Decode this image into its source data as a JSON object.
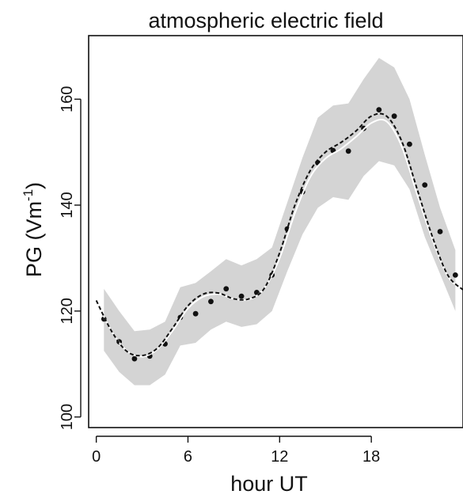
{
  "chart_data": {
    "type": "line",
    "title": "atmospheric electric field",
    "xlabel": "hour UT",
    "ylabel_main": "PG (Vm",
    "ylabel_sup": "-1",
    "ylabel_close": ")",
    "xlim": [
      -0.5,
      24
    ],
    "ylim": [
      98,
      172
    ],
    "x_ticks": [
      0,
      6,
      12,
      18
    ],
    "y_ticks": [
      100,
      120,
      140,
      160
    ],
    "grid": false,
    "band": {
      "x": [
        0.5,
        1.5,
        2.5,
        3.5,
        4.5,
        5.5,
        6.5,
        7.5,
        8.5,
        9.5,
        10.5,
        11.5,
        12.5,
        13.5,
        14.5,
        15.5,
        16.5,
        17.5,
        18.5,
        19.5,
        20.5,
        21.5,
        22.5,
        23.5
      ],
      "upper": [
        124.2,
        120.0,
        116.2,
        116.5,
        118.0,
        124.5,
        125.3,
        127.5,
        129.8,
        128.6,
        129.8,
        132.0,
        140.5,
        149.0,
        156.5,
        158.8,
        159.2,
        163.8,
        167.8,
        166.0,
        160.0,
        149.5,
        139.5,
        131.5
      ],
      "lower": [
        112.5,
        108.5,
        106.0,
        106.0,
        108.0,
        113.5,
        114.0,
        116.5,
        118.0,
        117.0,
        117.5,
        120.0,
        127.5,
        134.5,
        139.5,
        141.5,
        141.0,
        145.5,
        148.3,
        147.5,
        143.0,
        134.0,
        127.0,
        120.0
      ]
    },
    "series": [
      {
        "style": "points",
        "x": [
          0.5,
          1.5,
          2.5,
          3.5,
          4.5,
          5.5,
          6.5,
          7.5,
          8.5,
          9.5,
          10.5,
          11.5,
          12.5,
          13.5,
          14.5,
          15.5,
          16.5,
          17.5,
          18.5,
          19.5,
          20.5,
          21.5,
          22.5,
          23.5
        ],
        "values": [
          118.5,
          114.2,
          111.0,
          111.5,
          113.8,
          118.8,
          119.5,
          121.8,
          124.2,
          122.8,
          123.5,
          126.8,
          135.5,
          142.5,
          148.0,
          150.3,
          150.2,
          154.5,
          158.0,
          156.8,
          151.5,
          143.8,
          135.0,
          126.8
        ]
      },
      {
        "style": "solid-white",
        "x": [
          0,
          1,
          2,
          3,
          4,
          5,
          6,
          7,
          8,
          9,
          10,
          11,
          12,
          13,
          14,
          15,
          16,
          17,
          18,
          19,
          20,
          21,
          22,
          23,
          24
        ],
        "values": [
          122.0,
          116.2,
          112.5,
          111.4,
          112.8,
          116.3,
          120.5,
          122.7,
          123.2,
          122.3,
          122.2,
          124.3,
          130.0,
          138.5,
          145.3,
          148.8,
          150.6,
          152.9,
          155.5,
          155.8,
          151.0,
          142.0,
          133.5,
          126.6,
          124.0
        ]
      },
      {
        "style": "dashed-black",
        "x": [
          0,
          1,
          2,
          3,
          4,
          5,
          6,
          7,
          8,
          9,
          10,
          11,
          12,
          13,
          14,
          15,
          16,
          17,
          18,
          19,
          20,
          21,
          22,
          23,
          24
        ],
        "values": [
          122.0,
          116.2,
          112.4,
          111.6,
          113.0,
          116.8,
          121.0,
          123.2,
          123.4,
          122.3,
          122.3,
          124.3,
          131.0,
          140.0,
          146.5,
          150.0,
          151.8,
          154.0,
          156.8,
          156.8,
          152.0,
          143.0,
          134.0,
          126.8,
          124.0
        ]
      }
    ],
    "colors": {
      "band": "#d4d4d4",
      "points": "#111111",
      "dashed": "#111111",
      "solid": "#ffffff",
      "axis": "#111111"
    }
  }
}
